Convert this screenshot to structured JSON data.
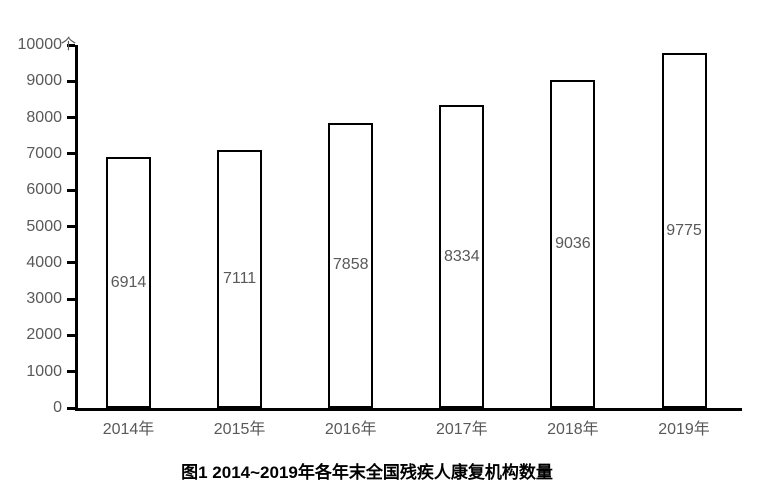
{
  "figure": {
    "caption": "图1 2014~2019年各年末全国残疾人康复机构数量"
  },
  "chart_data": {
    "type": "bar",
    "title": "图1 2014~2019年各年末全国残疾人康复机构数量",
    "categories": [
      "2014年",
      "2015年",
      "2016年",
      "2017年",
      "2018年",
      "2019年"
    ],
    "values": [
      6914,
      7111,
      7858,
      8334,
      9036,
      9775
    ],
    "ylim": [
      0,
      10000
    ],
    "ytick_interval": 1000,
    "yticks": [
      0,
      1000,
      2000,
      3000,
      4000,
      5000,
      6000,
      7000,
      8000,
      9000,
      10000
    ],
    "y_axis_unit": "个",
    "xlabel": "",
    "ylabel": "",
    "grid": false,
    "legend_position": "none",
    "data_label_position": "inside-center",
    "colors": {
      "bar_fill": "#ffffff",
      "bar_border": "#000000",
      "axis": "#000000",
      "tick_label": "#595959",
      "data_label": "#595959",
      "title": "#000000"
    }
  }
}
